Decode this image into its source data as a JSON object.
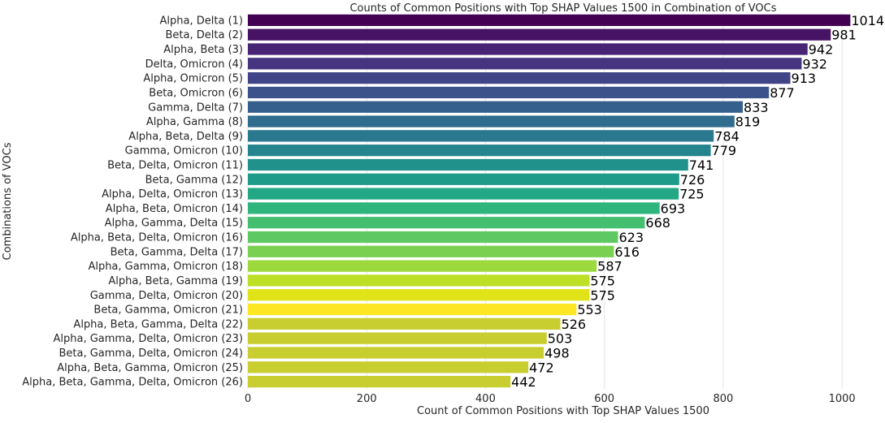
{
  "chart_data": {
    "type": "bar",
    "orientation": "horizontal",
    "title": "Counts of Common Positions with Top SHAP Values 1500 in Combination of VOCs",
    "xlabel": "Count of Common Positions with Top SHAP Values 1500",
    "ylabel": "Combinations of VOCs",
    "xlim": [
      0,
      1060
    ],
    "xticks": [
      0,
      200,
      400,
      600,
      800,
      1000
    ],
    "grid": true,
    "colormap": "viridis",
    "categories": [
      "Alpha, Delta (1)",
      "Beta, Delta (2)",
      "Alpha, Beta (3)",
      "Delta, Omicron (4)",
      "Alpha, Omicron (5)",
      "Beta, Omicron (6)",
      "Gamma, Delta (7)",
      "Alpha, Gamma (8)",
      "Alpha, Beta, Delta (9)",
      "Gamma, Omicron (10)",
      "Beta, Delta, Omicron (11)",
      "Beta, Gamma (12)",
      "Alpha, Delta, Omicron (13)",
      "Alpha, Beta, Omicron (14)",
      "Alpha, Gamma, Delta (15)",
      "Alpha, Beta, Delta, Omicron (16)",
      "Beta, Gamma, Delta (17)",
      "Alpha, Gamma, Omicron (18)",
      "Alpha, Beta, Gamma (19)",
      "Gamma, Delta, Omicron (20)",
      "Beta, Gamma, Omicron (21)",
      "Alpha, Beta, Gamma, Delta (22)",
      "Alpha, Gamma, Delta, Omicron (23)",
      "Beta, Gamma, Delta, Omicron (24)",
      "Alpha, Beta, Gamma, Omicron (25)",
      "Alpha, Beta, Gamma, Delta, Omicron (26)"
    ],
    "values": [
      1014,
      981,
      942,
      932,
      913,
      877,
      833,
      819,
      784,
      779,
      741,
      726,
      725,
      693,
      668,
      623,
      616,
      587,
      575,
      575,
      553,
      526,
      503,
      498,
      472,
      442
    ],
    "colors": [
      "#440154",
      "#471365",
      "#482475",
      "#463480",
      "#414487",
      "#3b528b",
      "#355f8d",
      "#2f6c8e",
      "#2a788e",
      "#25848e",
      "#21918c",
      "#1e9c89",
      "#22a884",
      "#2fb47c",
      "#44bf70",
      "#5ec962",
      "#7ad151",
      "#9bd93c",
      "#bddf26",
      "#dfe318",
      "#fde725",
      "#c8ce2f",
      "#c8ce2f",
      "#c8ce2f",
      "#c8ce2f",
      "#c8ce2f"
    ]
  }
}
